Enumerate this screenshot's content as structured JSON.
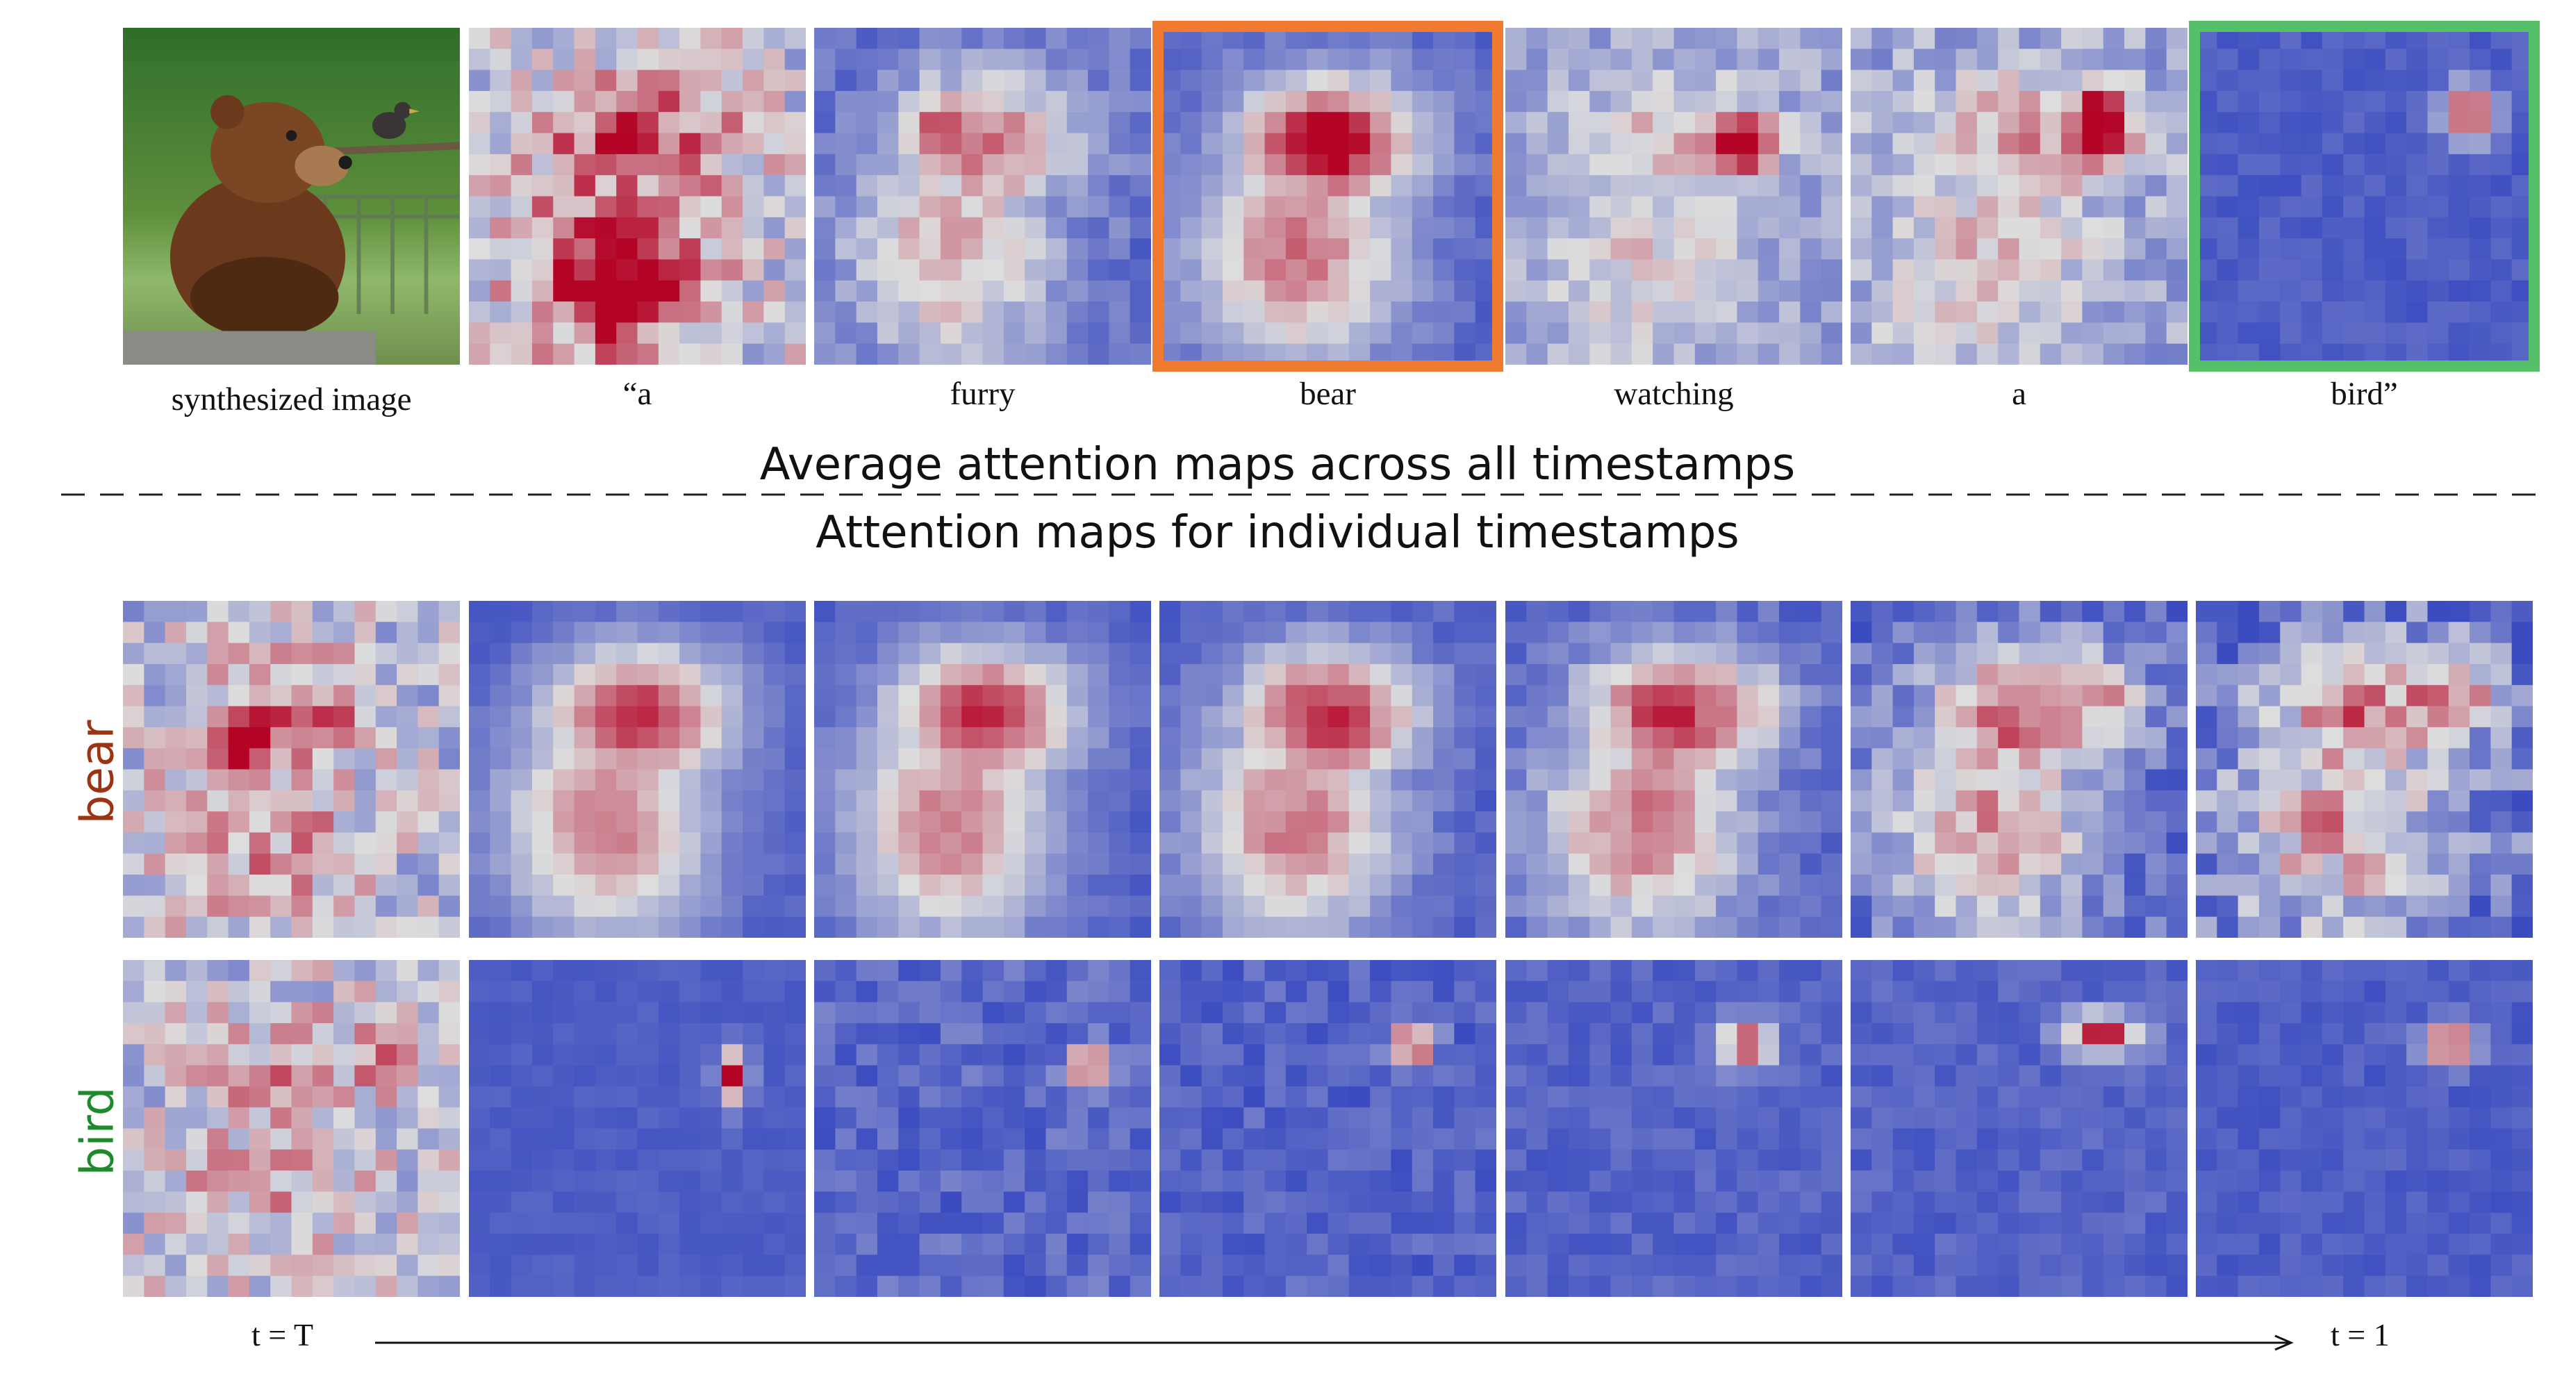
{
  "colors": {
    "low": "#3b4cc0",
    "mid": "#dddddd",
    "high": "#b40426",
    "highlight_bear": "#f07a2f",
    "highlight_bird": "#55c06a",
    "label_bear": "#9b3412",
    "label_bird": "#1e8a2c"
  },
  "top_row": {
    "image_caption": "synthesized image",
    "tokens": [
      "“a",
      "furry",
      "bear",
      "watching",
      "a",
      "bird”"
    ],
    "highlighted": {
      "bear": "bear",
      "bird": "bird”"
    }
  },
  "headings": {
    "average": "Average attention maps across all timestamps",
    "individual": "Attention maps for individual  timestamps"
  },
  "rows": {
    "bear_label": "bear",
    "bird_label": "bird"
  },
  "time_axis": {
    "start": "t = T",
    "end": "t = 1"
  }
}
